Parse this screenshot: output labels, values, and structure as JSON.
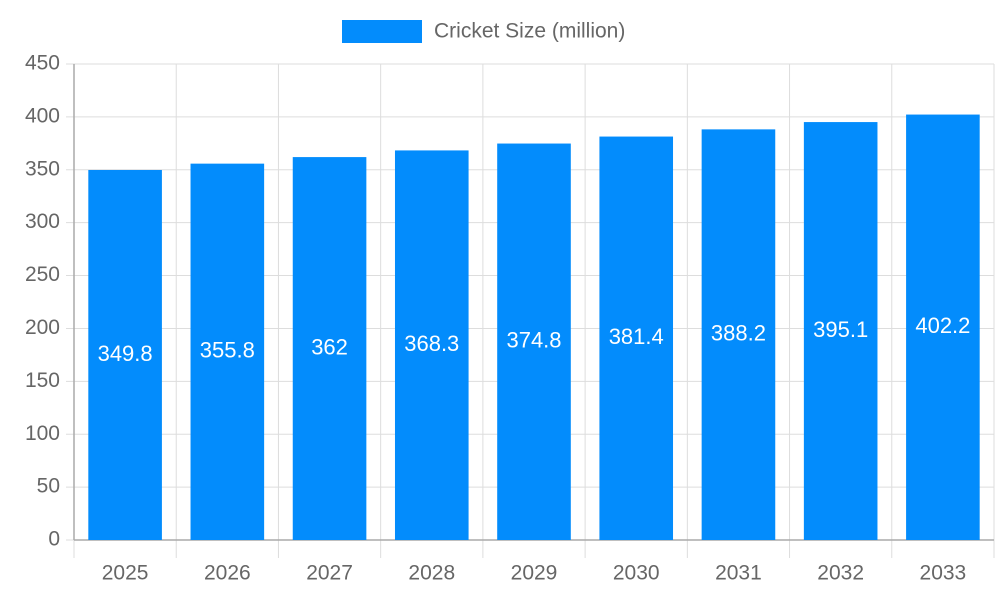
{
  "chart_data": {
    "type": "bar",
    "legend": "Cricket Size (million)",
    "categories": [
      "2025",
      "2026",
      "2027",
      "2028",
      "2029",
      "2030",
      "2031",
      "2032",
      "2033"
    ],
    "values": [
      349.8,
      355.8,
      362,
      368.3,
      374.8,
      381.4,
      388.2,
      395.1,
      402.2
    ],
    "color": "#038cfc",
    "ylim": [
      0,
      450
    ],
    "yticks": [
      0,
      50,
      100,
      150,
      200,
      250,
      300,
      350,
      400,
      450
    ],
    "grid": true,
    "legend_position": "top"
  }
}
